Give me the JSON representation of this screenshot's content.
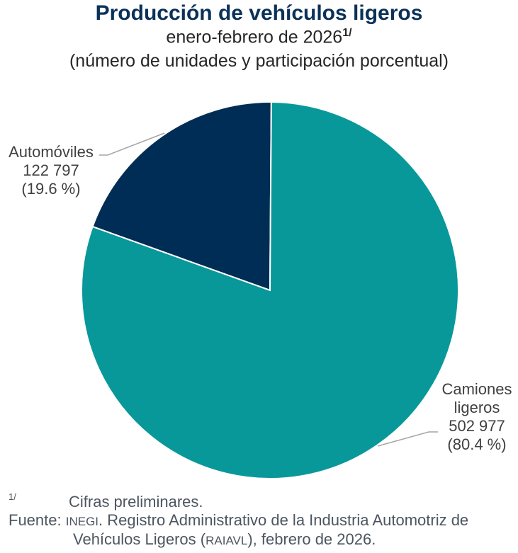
{
  "chart_data": {
    "type": "pie",
    "title": "Producción de vehículos ligeros",
    "subtitle": "enero-febrero de 2026",
    "subtitle_note": "1/",
    "units_note": "(número de unidades y participación porcentual)",
    "slices": [
      {
        "label": "Camiones ligeros",
        "value": 502977,
        "value_text": "502 977",
        "percent": 80.4,
        "percent_text": "(80.4 %)",
        "color": "#08989a"
      },
      {
        "label": "Automóviles",
        "value": 122797,
        "value_text": "122 797",
        "percent": 19.6,
        "percent_text": "(19.6 %)",
        "color": "#002d55"
      }
    ]
  },
  "footer": {
    "note_mark": "1/",
    "note_text": "Cifras preliminares.",
    "source_label": "Fuente:",
    "source_org": "INEGI",
    "source_text": ". Registro Administrativo de la Industria Automotriz de",
    "source_text2": "Vehículos Ligeros (",
    "source_abbr": "RAIAVL",
    "source_text3": "), febrero de 2026."
  }
}
